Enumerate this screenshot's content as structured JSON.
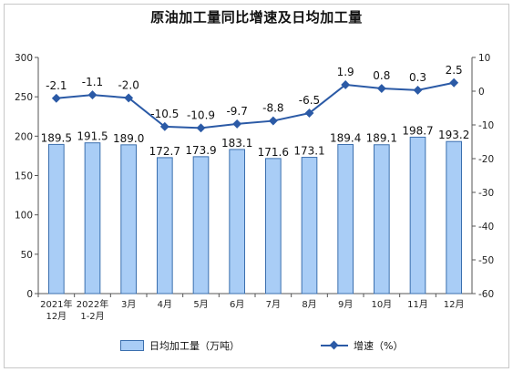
{
  "chart_data": {
    "type": "bar",
    "title": "原油加工量同比增速及日均加工量",
    "categories": [
      [
        "2021年",
        "12月"
      ],
      [
        "2022年",
        "1-2月"
      ],
      [
        "3月"
      ],
      [
        "4月"
      ],
      [
        "5月"
      ],
      [
        "6月"
      ],
      [
        "7月"
      ],
      [
        "8月"
      ],
      [
        "9月"
      ],
      [
        "10月"
      ],
      [
        "11月"
      ],
      [
        "12月"
      ]
    ],
    "series": [
      {
        "name": "日均加工量（万吨）",
        "type": "bar",
        "axis": "left",
        "values": [
          189.5,
          191.5,
          189.0,
          172.7,
          173.9,
          183.1,
          171.6,
          173.1,
          189.4,
          189.1,
          198.7,
          193.2
        ],
        "labels": [
          "189.5",
          "191.5",
          "189.0",
          "172.7",
          "173.9",
          "183.1",
          "171.6",
          "173.1",
          "189.4",
          "189.1",
          "198.7",
          "193.2"
        ],
        "color": "#a9cdf6",
        "edge_color": "#3b6fae"
      },
      {
        "name": "增速（%）",
        "type": "line",
        "axis": "right",
        "values": [
          -2.1,
          -1.1,
          -2.0,
          -10.5,
          -10.9,
          -9.7,
          -8.8,
          -6.5,
          1.9,
          0.8,
          0.3,
          2.5
        ],
        "labels": [
          "-2.1",
          "-1.1",
          "-2.0",
          "-10.5",
          "-10.9",
          "-9.7",
          "-8.8",
          "-6.5",
          "1.9",
          "0.8",
          "0.3",
          "2.5"
        ],
        "color": "#2b5aa6"
      }
    ],
    "ylim_left": [
      0,
      300
    ],
    "ylim_right": [
      -60,
      10
    ],
    "yticks_left": [
      0,
      50,
      100,
      150,
      200,
      250,
      300
    ],
    "yticks_right": [
      -60,
      -50,
      -40,
      -30,
      -20,
      -10,
      0,
      10
    ],
    "legend_position": "bottom",
    "grid": false
  }
}
